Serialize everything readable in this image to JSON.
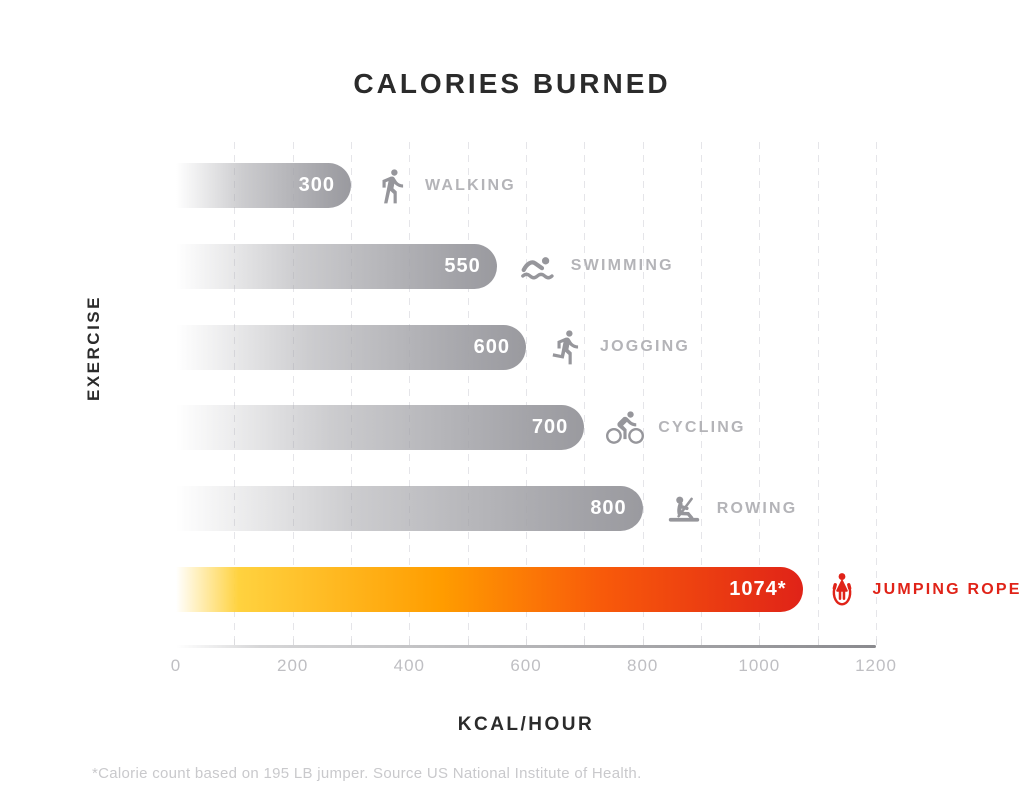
{
  "title": "CALORIES BURNED",
  "axes": {
    "y_label": "EXERCISE",
    "x_label": "KCAL/HOUR"
  },
  "footnote": "*Calorie count based on 195 LB jumper. Source US National Institute of Health.",
  "chart_data": {
    "type": "bar",
    "orientation": "horizontal",
    "title": "CALORIES BURNED",
    "xlabel": "KCAL/HOUR",
    "ylabel": "EXERCISE",
    "xlim": [
      0,
      1200
    ],
    "x_ticks": [
      "0",
      "200",
      "400",
      "600",
      "800",
      "1000",
      "1200"
    ],
    "x_tick_values": [
      0,
      200,
      400,
      600,
      800,
      1000,
      1200
    ],
    "gridline_interval": 100,
    "grid": true,
    "legend": false,
    "categories": [
      "WALKING",
      "SWIMMING",
      "JOGGING",
      "CYCLING",
      "ROWING",
      "JUMPING ROPE"
    ],
    "values": [
      300,
      550,
      600,
      700,
      800,
      1074
    ],
    "value_labels": [
      "300",
      "550",
      "600",
      "700",
      "800",
      "1074*"
    ],
    "icons": [
      "walking-icon",
      "swimming-icon",
      "jogging-icon",
      "cycling-icon",
      "rowing-icon",
      "jumping-rope-icon"
    ],
    "highlight_index": 5,
    "colors": {
      "bar_gray": "#a2a2a7",
      "bar_value_text": "#ffffff",
      "category_label": "#b4b4b8",
      "icon_gray": "#96969b",
      "highlight_red": "#e02318",
      "highlight_orange": "#ff9d00",
      "highlight_yellow": "#ffd23f",
      "title_text": "#2b2b2b",
      "tick_label_text": "#bfbfc3",
      "gridline": "#e5e5e9",
      "footnote_text": "#c9c9cc"
    }
  }
}
